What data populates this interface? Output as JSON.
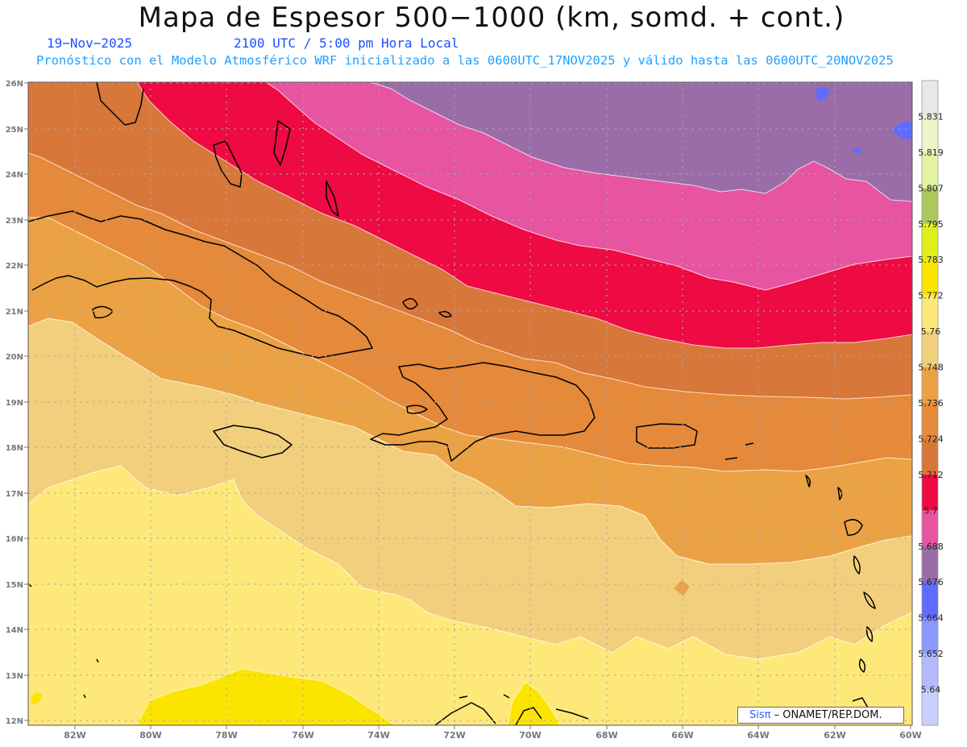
{
  "header": {
    "title": "Mapa de Espesor 500−1000 (km, somd. + cont.)",
    "date": "19−Nov−2025",
    "time": "2100 UTC / 5:00 pm Hora Local",
    "description": "Pronóstico con el Modelo Atmosférico WRF inicializado a las 0600UTC_17NOV2025 y válido hasta las  0600UTC_20NOV2025"
  },
  "map": {
    "projection_extent": {
      "lon_min": -83.2,
      "lon_max": -60,
      "lat_min": 11.9,
      "lat_max": 26
    },
    "lon_ticks": [
      "82W",
      "80W",
      "78W",
      "76W",
      "74W",
      "72W",
      "70W",
      "68W",
      "66W",
      "64W",
      "62W",
      "60W"
    ],
    "lat_ticks": [
      "12N",
      "13N",
      "14N",
      "15N",
      "16N",
      "17N",
      "18N",
      "19N",
      "20N",
      "21N",
      "22N",
      "23N",
      "24N",
      "25N",
      "26N"
    ],
    "gridlines": true,
    "band_colors": {
      "lt_5764": "#ffe87a",
      "5748_5760": "#f2cf7c",
      "5736_5748": "#eba244",
      "5724_5736": "#e5893a",
      "5712_5724": "#d8773a",
      "5700_5712": "#ee0a42",
      "5688_5700": "#e754a0",
      "5676_5688": "#9a6da8",
      "5772_5784": "#fbe500"
    }
  },
  "colorbar": {
    "labels": [
      "5.831",
      "5.819",
      "5.807",
      "5.795",
      "5.783",
      "5.772",
      "5.76",
      "5.748",
      "5.736",
      "5.724",
      "5.712",
      "5.7",
      "5.688",
      "5.676",
      "5.664",
      "5.652",
      "5.64"
    ],
    "colors": [
      "#e8e8e8",
      "#eef4c9",
      "#e2f3a2",
      "#abc95a",
      "#e0ef1c",
      "#fbe500",
      "#ffe87a",
      "#f2cf7c",
      "#eba244",
      "#e5893a",
      "#d8773a",
      "#ee0a42",
      "#e754a0",
      "#9a6da8",
      "#5f6cff",
      "#8a98ff",
      "#b2bbff",
      "#c8d0ff"
    ]
  },
  "credit": {
    "brand": "Sisπ",
    "org": " – ONAMET/REP.DOM."
  }
}
